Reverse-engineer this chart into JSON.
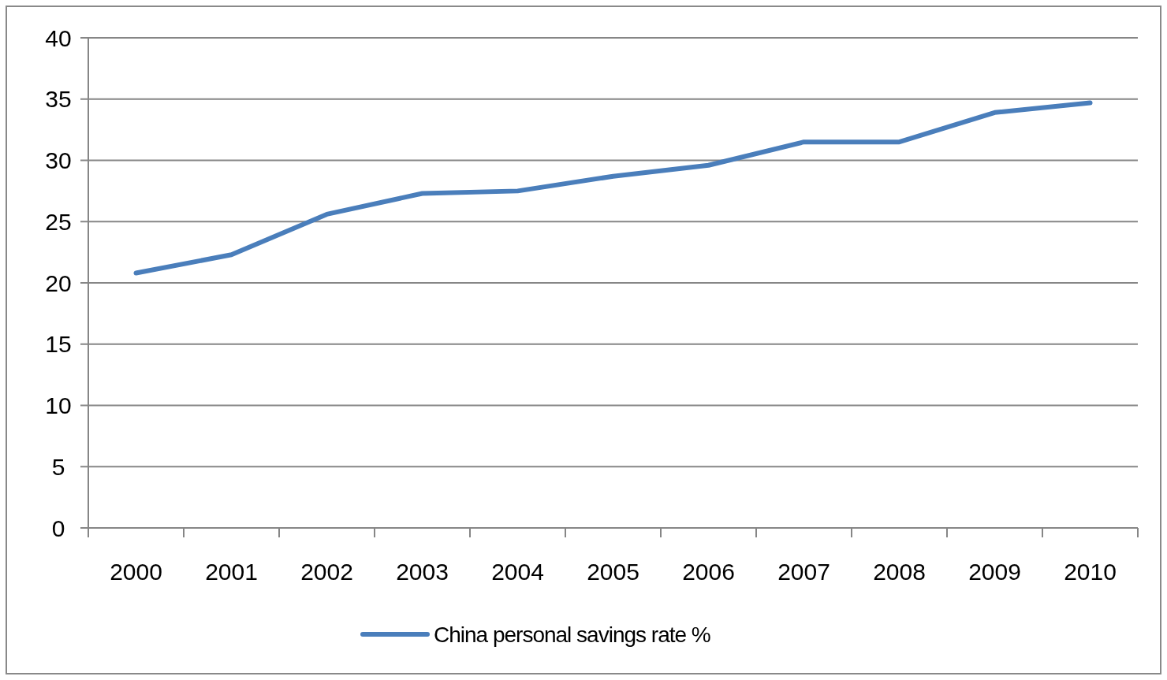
{
  "chart_data": {
    "type": "line",
    "categories": [
      "2000",
      "2001",
      "2002",
      "2003",
      "2004",
      "2005",
      "2006",
      "2007",
      "2008",
      "2009",
      "2010"
    ],
    "series": [
      {
        "name": "China personal savings rate %",
        "color": "#4a7ebb",
        "values": [
          20.8,
          22.3,
          25.6,
          27.3,
          27.5,
          28.7,
          29.6,
          31.5,
          31.5,
          33.9,
          34.7
        ]
      }
    ],
    "ylim": [
      0,
      40
    ],
    "yticks": [
      0,
      5,
      10,
      15,
      20,
      25,
      30,
      35,
      40
    ],
    "grid": "y",
    "legend": "bottom",
    "marker": "none",
    "line_style": "solid"
  }
}
